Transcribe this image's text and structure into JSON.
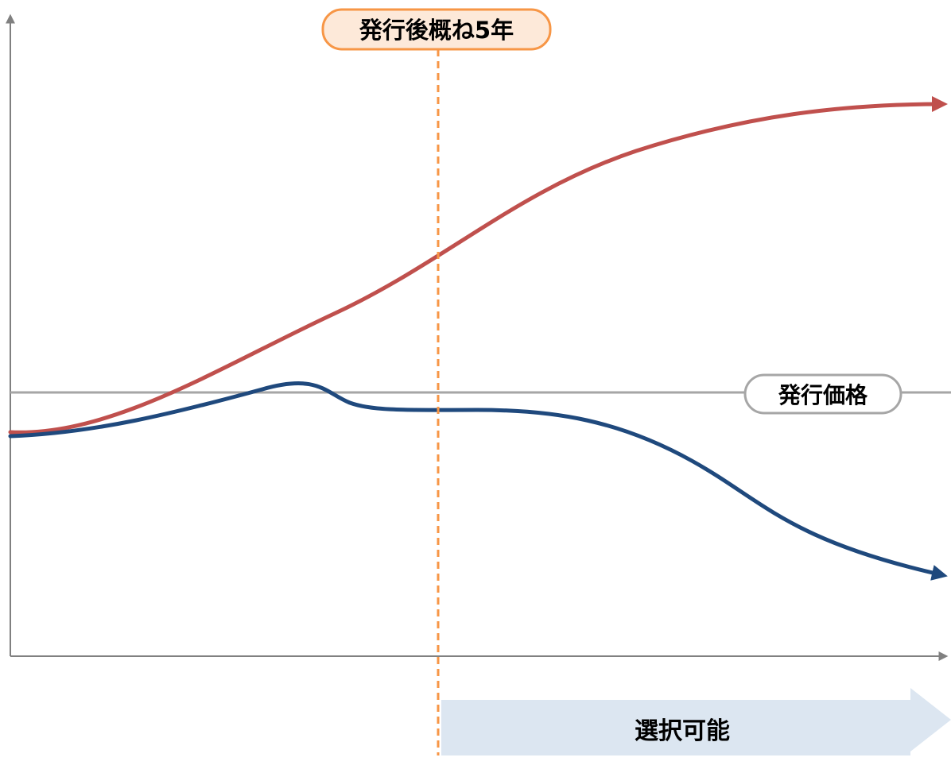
{
  "labels": {
    "milestone": "発行後概ね5年",
    "issue_price": "発行価格",
    "selectable": "選択可能"
  },
  "colors": {
    "rising_line": "#c0504d",
    "falling_line": "#1f497d",
    "axis": "#808080",
    "reference_line": "#a6a6a6",
    "milestone_line": "#f79646",
    "milestone_fill": "#fde9d9",
    "selectable_arrow_fill": "#dce6f1"
  }
}
